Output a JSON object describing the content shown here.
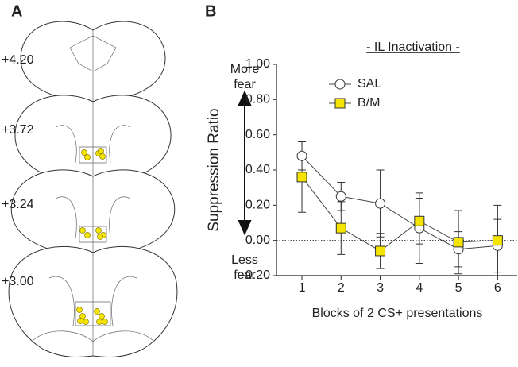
{
  "panel_labels": [
    "A",
    "B"
  ],
  "sections": [
    "+4.20",
    "+3.72",
    "+3.24",
    "+3.00"
  ],
  "chart_data": {
    "type": "line",
    "title": "- IL Inactivation -",
    "x_label": "Blocks of 2 CS+ presentations",
    "y_label": "Suppression Ratio",
    "annotations": {
      "top": "More fear",
      "bottom": "Less fear"
    },
    "x": [
      1,
      2,
      3,
      4,
      5,
      6
    ],
    "xlim": [
      0.35,
      6.5
    ],
    "xticks": [
      1,
      2,
      3,
      4,
      5,
      6
    ],
    "ylim": [
      -0.2,
      1.0
    ],
    "yticks": [
      {
        "value": -0.2,
        "label": "-0.20"
      },
      {
        "value": 0,
        "label": "0.00"
      },
      {
        "value": 0.2,
        "label": "0.20"
      },
      {
        "value": 0.4,
        "label": "0.40"
      },
      {
        "value": 0.6,
        "label": "0.60"
      },
      {
        "value": 0.8,
        "label": "0.80"
      },
      {
        "value": 1.0,
        "label": "1.00"
      }
    ],
    "zero_line": true,
    "series": [
      {
        "name": "SAL",
        "color": "#ffffff",
        "marker": "circle",
        "values": [
          0.48,
          0.25,
          0.21,
          0.07,
          -0.05,
          -0.03
        ],
        "errors": [
          0.08,
          0.08,
          0.19,
          0.2,
          0.1,
          0.15
        ]
      },
      {
        "name": "B/M",
        "color": "#f5e400",
        "marker": "square",
        "values": [
          0.36,
          0.07,
          -0.06,
          0.11,
          -0.01,
          0.0
        ],
        "errors": [
          0.2,
          0.15,
          0.1,
          0.13,
          0.18,
          0.2
        ]
      }
    ]
  }
}
